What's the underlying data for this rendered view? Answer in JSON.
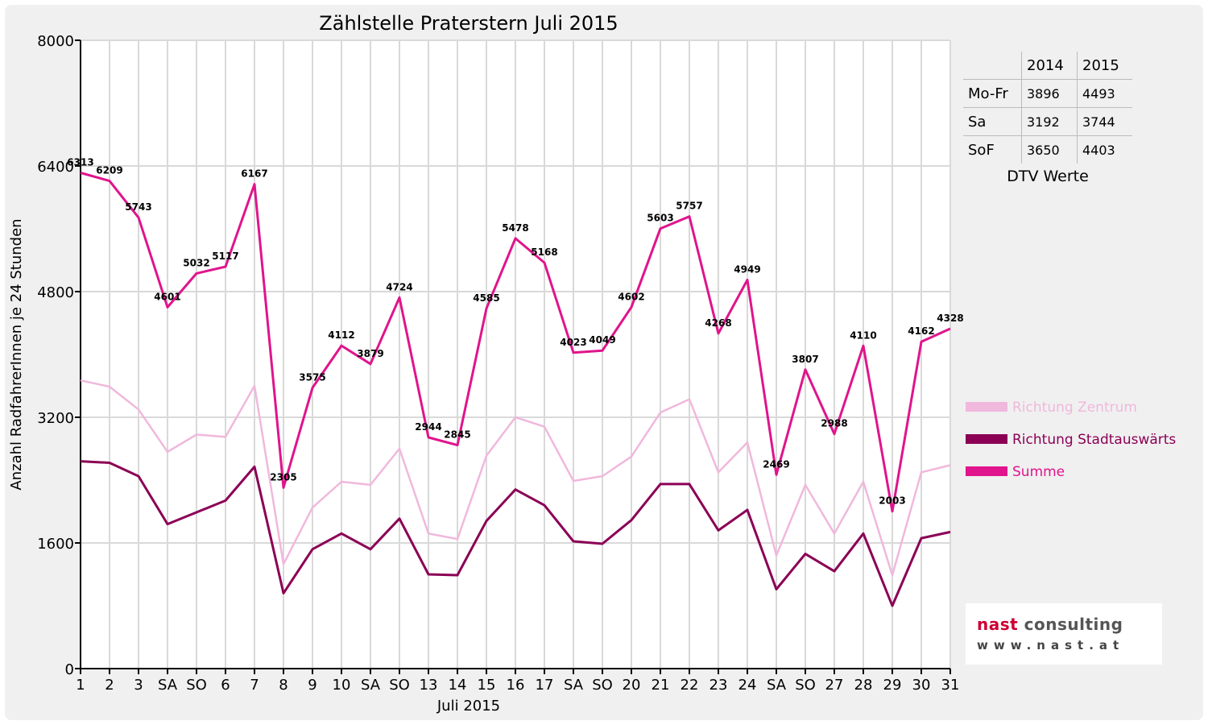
{
  "chart_data": {
    "type": "line",
    "title": "Zählstelle Praterstern Juli 2015",
    "xlabel": "Juli 2015",
    "ylabel": "Anzahl RadfahrerInnen je 24 Stunden",
    "ylim": [
      0,
      8000
    ],
    "yticks": [
      "0",
      "1600",
      "3200",
      "4800",
      "6400",
      "8000"
    ],
    "grid": true,
    "legend_position": "right",
    "categories": [
      "1",
      "2",
      "3",
      "SA",
      "SO",
      "6",
      "7",
      "8",
      "9",
      "10",
      "SA",
      "SO",
      "13",
      "14",
      "15",
      "16",
      "17",
      "SA",
      "SO",
      "20",
      "21",
      "22",
      "23",
      "24",
      "SA",
      "SO",
      "27",
      "28",
      "29",
      "30",
      "31"
    ],
    "weekend_sunday_color": "#ff0000",
    "series": [
      {
        "name": "Richtung Zentrum",
        "color": "#f0b8dc",
        "values": [
          3670,
          3590,
          3300,
          2760,
          2980,
          2950,
          3600,
          1330,
          2050,
          2380,
          2340,
          2800,
          1720,
          1650,
          2710,
          3200,
          3080,
          2390,
          2450,
          2700,
          3260,
          3430,
          2500,
          2880,
          1440,
          2340,
          1720,
          2380,
          1190,
          2500,
          2590
        ],
        "show_labels": false
      },
      {
        "name": "Richtung Stadtauswärts",
        "color": "#8b0055",
        "values": [
          2640,
          2620,
          2450,
          1840,
          1990,
          2140,
          2570,
          960,
          1520,
          1720,
          1520,
          1910,
          1200,
          1190,
          1880,
          2280,
          2080,
          1620,
          1590,
          1890,
          2350,
          2350,
          1760,
          2020,
          1010,
          1460,
          1240,
          1720,
          800,
          1660,
          1740
        ],
        "show_labels": false
      },
      {
        "name": "Summe",
        "color": "#e0148c",
        "values": [
          6313,
          6209,
          5743,
          4601,
          5032,
          5117,
          6167,
          2305,
          3575,
          4112,
          3879,
          4724,
          2944,
          2845,
          4585,
          5478,
          5168,
          4023,
          4049,
          4602,
          5603,
          5757,
          4268,
          4949,
          2469,
          3807,
          2988,
          4110,
          2003,
          4162,
          4328
        ],
        "show_labels": true
      }
    ]
  },
  "dtv_table": {
    "caption": "DTV Werte",
    "headers": [
      "",
      "2014",
      "2015"
    ],
    "rows": [
      [
        "Mo-Fr",
        "3896",
        "4493"
      ],
      [
        "Sa",
        "3192",
        "3744"
      ],
      [
        "SoF",
        "3650",
        "4403"
      ]
    ]
  },
  "logo": {
    "name_part1": "nast",
    "name_part2": " consulting",
    "url": "www.nast.at"
  }
}
